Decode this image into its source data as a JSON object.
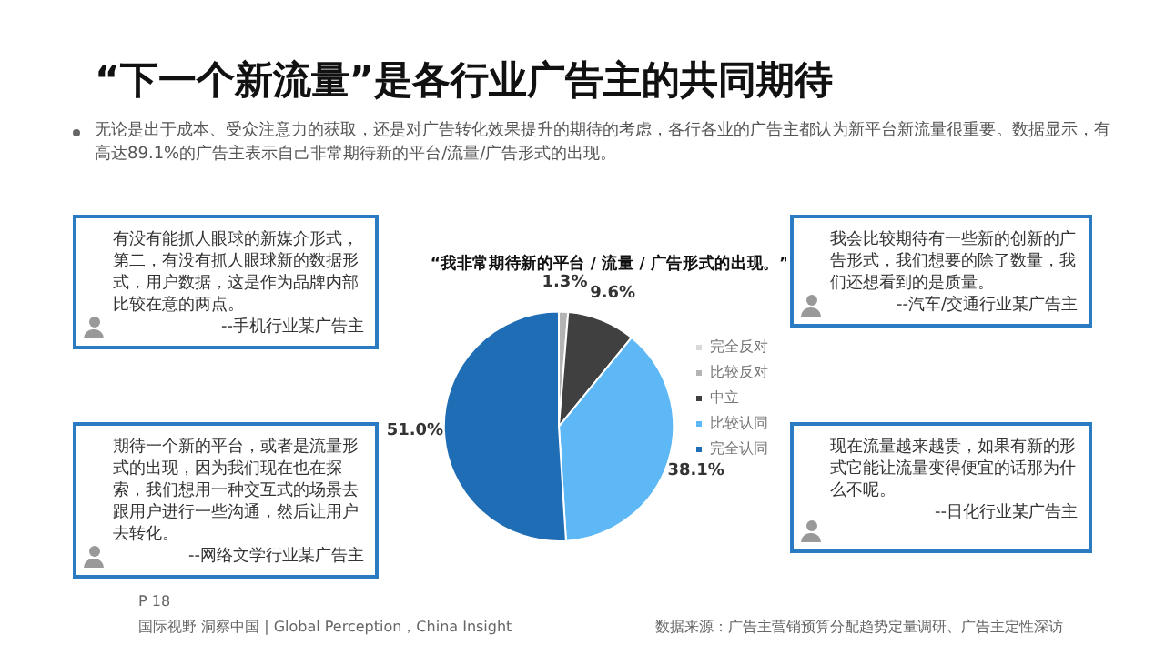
{
  "chart_data": {
    "type": "pie",
    "title": "“下一个新流量”是各行业广告主的共同期待",
    "subtitle": "无论是出于成本、受众注意力的获取，还是对广告转化效果提升的期待的考虑，各行各业的广告主都认为新平台新流量很重要。数据显示，有高达89.1%的广告主表示自己非常期待新的平台/流量/广告形式的出现。",
    "xlabel": "“我非常期待新的平台 / 流量 / 广告形式的出现。”",
    "categories": [
      "完全反对",
      "比较反对",
      "中立",
      "比较认同",
      "完全认同"
    ],
    "values": [
      0,
      1.3,
      9.6,
      38.1,
      51.0
    ],
    "value_labels": [
      null,
      "1.3%",
      "9.6%",
      "38.1%",
      "51.0%"
    ],
    "colors": [
      "#d9d9d9",
      "#b4b4b4",
      "#404040",
      "#5db8f5",
      "#1f6db5"
    ],
    "legend": "right",
    "annotations": [
      "有没有能抓人眼球的新媒介形式，第二，有没有抓人眼球新的数据形式，用户数据，这是作为品牌内部比较在意的两点。\n--手机行业某广告主",
      "期待一个新的平台，或者是流量形式的出现，因为我们现在也在探索，我们想用一种交互式的场景去跟用户进行一些沟通，然后让用户去转化。\n--网络文学行业某广告主",
      "我会比较期待有一些新的创新的广告形式，我们想要的除了数量，我们还想看到的是质量。\n--汽车/交通行业某广告主",
      "现在流量越来越贵，如果有新的形式它能让流量变得便宜的话那为什么不呢。\n--日化行业某广告主",
      "P 18",
      "国际视野 洞察中国 | Global Perception，China Insight",
      "数据来源：广告主营销预算分配趋势定量调研、广告主定性深访"
    ]
  }
}
